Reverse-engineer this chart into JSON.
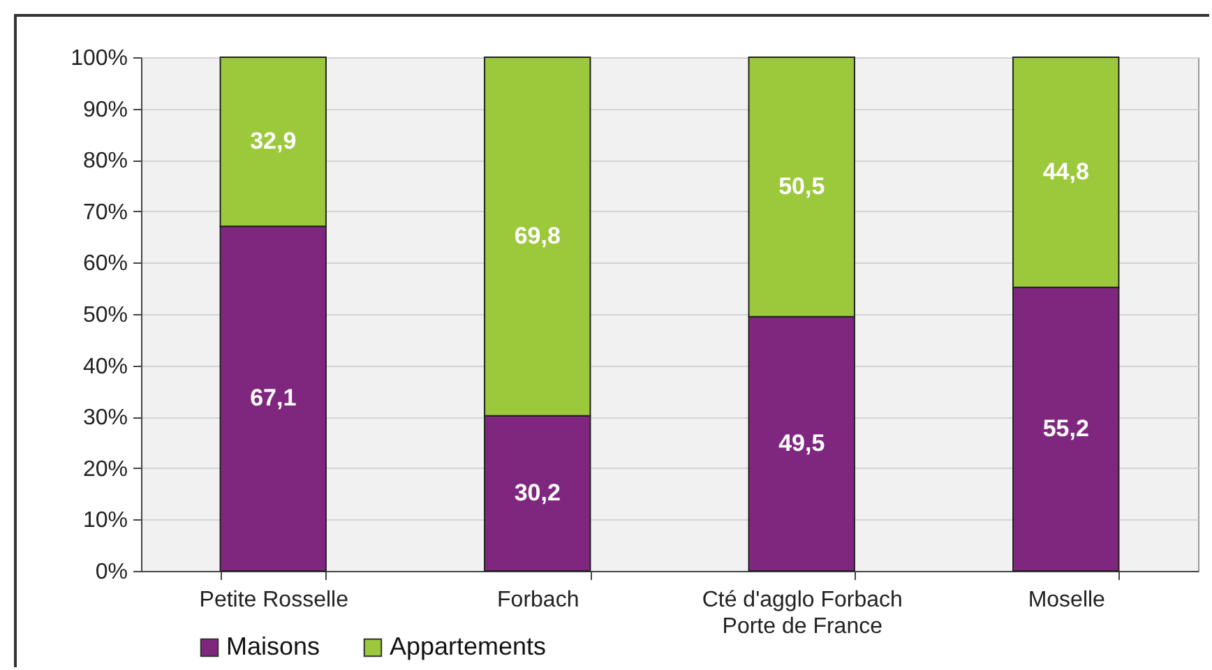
{
  "chart_data": {
    "type": "bar",
    "stacked": true,
    "categories": [
      "Petite Rosselle",
      "Forbach",
      "Cté d'agglo Forbach\nPorte de France",
      "Moselle"
    ],
    "series": [
      {
        "name": "Maisons",
        "color": "#7f277f",
        "values": [
          67.1,
          30.2,
          49.5,
          55.2
        ],
        "value_labels": [
          "67,1",
          "30,2",
          "49,5",
          "55,2"
        ]
      },
      {
        "name": "Appartements",
        "color": "#9bc93b",
        "values": [
          32.9,
          69.8,
          50.5,
          44.8
        ],
        "value_labels": [
          "32,9",
          "69,8",
          "50,5",
          "44,8"
        ]
      }
    ],
    "ylim": [
      0,
      100
    ],
    "yticks": [
      {
        "value": 0,
        "label": "0%"
      },
      {
        "value": 10,
        "label": "10%"
      },
      {
        "value": 20,
        "label": "20%"
      },
      {
        "value": 30,
        "label": "30%"
      },
      {
        "value": 40,
        "label": "40%"
      },
      {
        "value": 50,
        "label": "50%"
      },
      {
        "value": 60,
        "label": "60%"
      },
      {
        "value": 70,
        "label": "70%"
      },
      {
        "value": 80,
        "label": "80%"
      },
      {
        "value": 90,
        "label": "90%"
      },
      {
        "value": 100,
        "label": "100%"
      }
    ],
    "grid": "y",
    "legend": "bottom left"
  }
}
